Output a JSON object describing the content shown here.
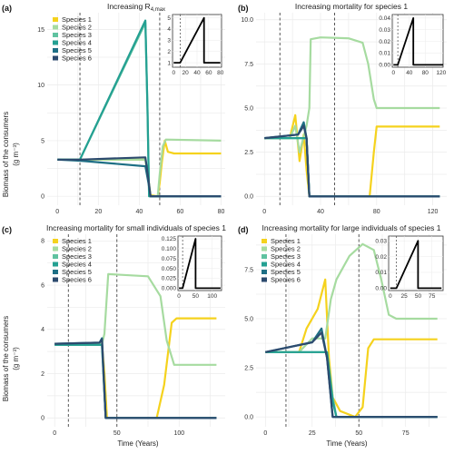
{
  "axis_labels": {
    "y_top": "Biomass of the consumers",
    "y_bottom": "(g m⁻³)",
    "x": "Time (Years)"
  },
  "colors": {
    "species_1": "#f5d21d",
    "species_2": "#a6dba0",
    "species_3": "#5fc2a0",
    "species_4": "#24a092",
    "species_5": "#1e6f85",
    "species_6": "#2c4a6e",
    "grid": "#ebebeb",
    "vline": "#444444"
  },
  "chart_data": [
    {
      "type": "line",
      "letter": "(a)",
      "title": "Increasing R",
      "title_sub": "4,max",
      "xlim": [
        -5,
        82
      ],
      "ylim": [
        -0.8,
        16.5
      ],
      "xticks": [
        0,
        20,
        40,
        60,
        80
      ],
      "yticks": [
        0,
        5,
        10,
        15
      ],
      "vlines": [
        11,
        50
      ],
      "legend": [
        "Species 1",
        "Species 2",
        "Species 3",
        "Species 4",
        "Species 5",
        "Species 6"
      ],
      "series": [
        {
          "name": "Species 1",
          "points": [
            [
              0,
              3.3
            ],
            [
              43,
              3.3
            ],
            [
              44.5,
              1.5
            ],
            [
              45.5,
              0.1
            ],
            [
              49,
              0
            ],
            [
              50,
              1.2
            ],
            [
              51,
              3.0
            ],
            [
              52.5,
              5.0
            ],
            [
              54,
              4.0
            ],
            [
              57,
              3.85
            ],
            [
              80,
              3.85
            ]
          ]
        },
        {
          "name": "Species 2",
          "points": [
            [
              0,
              3.3
            ],
            [
              43,
              3.3
            ],
            [
              44.5,
              1.5
            ],
            [
              45.5,
              0
            ],
            [
              49,
              0
            ],
            [
              50,
              2.0
            ],
            [
              51.5,
              4.5
            ],
            [
              53,
              5.1
            ],
            [
              80,
              5.0
            ]
          ]
        },
        {
          "name": "Species 3",
          "points": [
            [
              0,
              3.3
            ],
            [
              11,
              3.3
            ],
            [
              43,
              15.6
            ],
            [
              44,
              8
            ],
            [
              44.8,
              0
            ],
            [
              80,
              0
            ]
          ]
        },
        {
          "name": "Species 4",
          "points": [
            [
              0,
              3.3
            ],
            [
              11,
              3.3
            ],
            [
              43,
              15.8
            ],
            [
              44,
              8
            ],
            [
              44.8,
              0
            ],
            [
              80,
              0
            ]
          ]
        },
        {
          "name": "Species 5",
          "points": [
            [
              0,
              3.3
            ],
            [
              11,
              3.2
            ],
            [
              43,
              2.7
            ],
            [
              44.5,
              1.2
            ],
            [
              45.5,
              0
            ],
            [
              80,
              0
            ]
          ]
        },
        {
          "name": "Species 6",
          "points": [
            [
              0,
              3.3
            ],
            [
              11,
              3.3
            ],
            [
              43,
              3.5
            ],
            [
              44.5,
              1.5
            ],
            [
              45.5,
              0
            ],
            [
              80,
              0
            ]
          ]
        }
      ],
      "inset": {
        "xlim": [
          -2,
          82
        ],
        "ylim": [
          0.6,
          5.3
        ],
        "xticks": [
          0,
          20,
          40,
          60,
          80
        ],
        "yticks": [
          1,
          2,
          3,
          4,
          5
        ],
        "vline": 11,
        "points": [
          [
            0,
            1
          ],
          [
            11,
            1
          ],
          [
            52,
            5
          ],
          [
            52,
            1
          ],
          [
            80,
            1
          ]
        ]
      }
    },
    {
      "type": "line",
      "letter": "(b)",
      "title": "Increasing mortality for species 1",
      "title_sub": "",
      "xlim": [
        -6,
        130
      ],
      "ylim": [
        -0.5,
        10.4
      ],
      "xticks": [
        0,
        40,
        80,
        120
      ],
      "yticks": [
        0,
        2.5,
        5,
        7.5,
        10
      ],
      "ytick_labels": [
        "0.0",
        "2.5",
        "5.0",
        "7.5",
        "10.0"
      ],
      "vlines": [
        11,
        50
      ],
      "legend": [],
      "series": [
        {
          "name": "Species 1",
          "points": [
            [
              0,
              3.3
            ],
            [
              18,
              3.3
            ],
            [
              22,
              4.6
            ],
            [
              25,
              2.0
            ],
            [
              28,
              3.5
            ],
            [
              30,
              1.5
            ],
            [
              32,
              0
            ],
            [
              75,
              0
            ],
            [
              78,
              2.5
            ],
            [
              80,
              3.95
            ],
            [
              125,
              3.95
            ]
          ]
        },
        {
          "name": "Species 2",
          "points": [
            [
              0,
              3.3
            ],
            [
              18,
              3.3
            ],
            [
              22,
              4.0
            ],
            [
              25,
              2.5
            ],
            [
              30,
              4
            ],
            [
              32,
              5
            ],
            [
              33,
              8.9
            ],
            [
              40,
              9
            ],
            [
              60,
              8.95
            ],
            [
              70,
              8.7
            ],
            [
              74,
              7.5
            ],
            [
              78,
              5.5
            ],
            [
              80,
              5.0
            ],
            [
              125,
              5.0
            ]
          ]
        },
        {
          "name": "Species 3",
          "points": [
            [
              0,
              3.3
            ],
            [
              30,
              3.3
            ],
            [
              32,
              0
            ],
            [
              125,
              0
            ]
          ]
        },
        {
          "name": "Species 4",
          "points": [
            [
              0,
              3.3
            ],
            [
              30,
              3.3
            ],
            [
              32,
              0
            ],
            [
              125,
              0
            ]
          ]
        },
        {
          "name": "Species 5",
          "points": [
            [
              0,
              3.3
            ],
            [
              24,
              3.5
            ],
            [
              28,
              4.2
            ],
            [
              30,
              3.3
            ],
            [
              32,
              0
            ],
            [
              125,
              0
            ]
          ]
        },
        {
          "name": "Species 6",
          "points": [
            [
              0,
              3.3
            ],
            [
              24,
              3.5
            ],
            [
              28,
              4.0
            ],
            [
              30,
              3.3
            ],
            [
              32,
              0
            ],
            [
              125,
              0
            ]
          ]
        }
      ],
      "inset": {
        "xlim": [
          -3,
          125
        ],
        "ylim": [
          -0.002,
          0.043
        ],
        "xticks": [
          0,
          40,
          80,
          120
        ],
        "yticks": [
          0,
          0.01,
          0.02,
          0.03,
          0.04
        ],
        "ytick_labels": [
          "0.00",
          "0.01",
          "0.02",
          "0.03",
          "0.04"
        ],
        "vline": 11,
        "points": [
          [
            0,
            0
          ],
          [
            11,
            0
          ],
          [
            50,
            0.04
          ],
          [
            50,
            0
          ],
          [
            125,
            0
          ]
        ]
      }
    },
    {
      "type": "line",
      "letter": "(c)",
      "title": "Increasing mortality for small individuals of species 1",
      "title_sub": "",
      "xlim": [
        -6,
        137
      ],
      "ylim": [
        -0.4,
        8.3
      ],
      "xticks": [
        0,
        50,
        100
      ],
      "yticks": [
        0,
        2,
        4,
        6,
        8
      ],
      "vlines": [
        11,
        50
      ],
      "legend": [
        "Species 1",
        "Species 2",
        "Species 3",
        "Species 4",
        "Species 5",
        "Species 6"
      ],
      "series": [
        {
          "name": "Species 1",
          "points": [
            [
              0,
              3.35
            ],
            [
              38,
              3.35
            ],
            [
              40,
              2
            ],
            [
              42,
              0
            ],
            [
              82,
              0
            ],
            [
              88,
              1.5
            ],
            [
              94,
              4.3
            ],
            [
              98,
              4.5
            ],
            [
              130,
              4.5
            ]
          ]
        },
        {
          "name": "Species 2",
          "points": [
            [
              0,
              3.35
            ],
            [
              38,
              3.35
            ],
            [
              40,
              3.8
            ],
            [
              43,
              6.5
            ],
            [
              75,
              6.4
            ],
            [
              85,
              5.5
            ],
            [
              90,
              3.5
            ],
            [
              96,
              2.4
            ],
            [
              130,
              2.4
            ]
          ]
        },
        {
          "name": "Species 3",
          "points": [
            [
              0,
              3.3
            ],
            [
              38,
              3.3
            ],
            [
              41,
              0
            ],
            [
              130,
              0
            ]
          ]
        },
        {
          "name": "Species 4",
          "points": [
            [
              0,
              3.3
            ],
            [
              38,
              3.3
            ],
            [
              41,
              0
            ],
            [
              130,
              0
            ]
          ]
        },
        {
          "name": "Species 5",
          "points": [
            [
              0,
              3.35
            ],
            [
              36,
              3.4
            ],
            [
              38,
              3.6
            ],
            [
              41,
              0
            ],
            [
              130,
              0
            ]
          ]
        },
        {
          "name": "Species 6",
          "points": [
            [
              0,
              3.35
            ],
            [
              36,
              3.4
            ],
            [
              38,
              3.55
            ],
            [
              41,
              0
            ],
            [
              130,
              0
            ]
          ]
        }
      ],
      "inset": {
        "xlim": [
          -3,
          128
        ],
        "ylim": [
          -0.006,
          0.132
        ],
        "xticks": [
          0,
          50,
          100
        ],
        "yticks": [
          0,
          0.025,
          0.05,
          0.075,
          0.1,
          0.125
        ],
        "ytick_labels": [
          "0.000",
          "0.025",
          "0.050",
          "0.075",
          "0.100",
          "0.125"
        ],
        "vline": 11,
        "points": [
          [
            0,
            0
          ],
          [
            11,
            0
          ],
          [
            50,
            0.125
          ],
          [
            50,
            0
          ],
          [
            125,
            0
          ]
        ]
      }
    },
    {
      "type": "line",
      "letter": "(d)",
      "title": "Increasing mortality for large individuals of species 1",
      "title_sub": "",
      "xlim": [
        -5,
        97
      ],
      "ylim": [
        -0.5,
        9.3
      ],
      "xticks": [
        0,
        25,
        50,
        75
      ],
      "yticks": [
        0,
        2.5,
        5,
        7.5
      ],
      "ytick_labels": [
        "0.0",
        "2.5",
        "5.0",
        "7.5"
      ],
      "vlines": [
        11,
        50
      ],
      "legend": [
        "Species 1",
        "Species 2",
        "Species 3",
        "Species 4",
        "Species 5",
        "Species 6"
      ],
      "series": [
        {
          "name": "Species 1",
          "points": [
            [
              0,
              3.3
            ],
            [
              18,
              3.3
            ],
            [
              22,
              4.5
            ],
            [
              28,
              5.5
            ],
            [
              32,
              7
            ],
            [
              34,
              3
            ],
            [
              36,
              1
            ],
            [
              40,
              0.3
            ],
            [
              48,
              0
            ],
            [
              52,
              0.5
            ],
            [
              55,
              3.5
            ],
            [
              58,
              3.95
            ],
            [
              92,
              3.95
            ]
          ]
        },
        {
          "name": "Species 2",
          "points": [
            [
              0,
              3.3
            ],
            [
              18,
              3.3
            ],
            [
              25,
              4
            ],
            [
              32,
              4
            ],
            [
              35,
              6
            ],
            [
              38,
              7
            ],
            [
              45,
              8.2
            ],
            [
              52,
              8.8
            ],
            [
              58,
              8.5
            ],
            [
              62,
              7
            ],
            [
              66,
              5.2
            ],
            [
              70,
              5.0
            ],
            [
              92,
              5.0
            ]
          ]
        },
        {
          "name": "Species 3",
          "points": [
            [
              0,
              3.3
            ],
            [
              33,
              3.3
            ],
            [
              36,
              1
            ],
            [
              38,
              0
            ],
            [
              92,
              0
            ]
          ]
        },
        {
          "name": "Species 4",
          "points": [
            [
              0,
              3.3
            ],
            [
              33,
              3.3
            ],
            [
              36,
              0.8
            ],
            [
              38,
              0
            ],
            [
              92,
              0
            ]
          ]
        },
        {
          "name": "Species 5",
          "points": [
            [
              0,
              3.3
            ],
            [
              25,
              3.8
            ],
            [
              30,
              4.5
            ],
            [
              33,
              3
            ],
            [
              36,
              0
            ],
            [
              92,
              0
            ]
          ]
        },
        {
          "name": "Species 6",
          "points": [
            [
              0,
              3.3
            ],
            [
              25,
              3.8
            ],
            [
              30,
              4.3
            ],
            [
              33,
              3
            ],
            [
              36,
              0
            ],
            [
              92,
              0
            ]
          ]
        }
      ],
      "inset": {
        "xlim": [
          -3,
          95
        ],
        "ylim": [
          -0.0015,
          0.033
        ],
        "xticks": [
          0,
          25,
          50,
          75
        ],
        "yticks": [
          0,
          0.01,
          0.02,
          0.03
        ],
        "ytick_labels": [
          "0.00",
          "0.01",
          "0.02",
          "0.03"
        ],
        "vline": 11,
        "points": [
          [
            0,
            0
          ],
          [
            11,
            0
          ],
          [
            50,
            0.03
          ],
          [
            50,
            0
          ],
          [
            92,
            0
          ]
        ]
      }
    }
  ]
}
